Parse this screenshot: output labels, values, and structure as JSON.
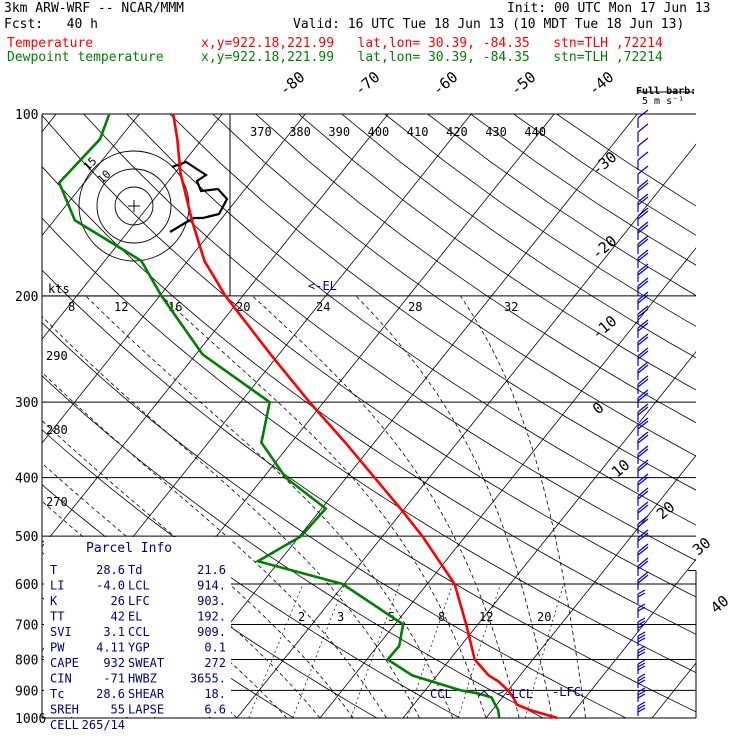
{
  "header": {
    "model": "3km ARW-WRF -- NCAR/MMM",
    "init": "Init: 00 UTC Mon 17 Jun 13",
    "fcst": "Fcst:   40 h",
    "valid": "Valid: 16 UTC Tue 18 Jun 13 (10 MDT Tue 18 Jun 13)",
    "temp_label": "Temperature",
    "temp_info": "x,y=922.18,221.99   lat,lon= 30.39, -84.35   stn=TLH ,72214",
    "dew_label": "Dewpoint temperature",
    "dew_info": "x,y=922.18,221.99   lat,lon= 30.39, -84.35   stn=TLH ,72214"
  },
  "colors": {
    "temperature": "#ff0000",
    "dewpoint": "#008000",
    "text_info": "#000080",
    "barb": "#0000cc"
  },
  "chart_data": {
    "type": "line",
    "subtype": "skew-T log-p sounding",
    "y_scale": "log",
    "pressure_levels": [
      100,
      200,
      300,
      400,
      500,
      600,
      700,
      800,
      900,
      1000
    ],
    "pressure_range": [
      1000,
      100
    ],
    "isotherm_labels": [
      -80,
      -70,
      -60,
      -50,
      -40,
      -30,
      -20,
      -10,
      0,
      10,
      20,
      30,
      40
    ],
    "theta_labels": [
      370,
      380,
      390,
      400,
      410,
      420,
      430,
      440
    ],
    "thetae_labels": [
      290,
      280,
      270
    ],
    "mixing_ratio_labels": [
      2,
      3,
      5,
      8,
      12,
      20
    ],
    "hodograph": {
      "unit_label": "kts",
      "ring_labels": [
        "15",
        "10"
      ],
      "speed_scale_labels": [
        "8",
        "12",
        "16",
        "20",
        "24",
        "28",
        "32"
      ]
    },
    "barb_legend": "Full barb: 5 m s⁻¹",
    "markers": [
      "<-EL",
      "<-LCL",
      "-LFC",
      "CCL"
    ],
    "series": [
      {
        "name": "Temperature",
        "unit": "°C",
        "points": [
          [
            1000,
            28.6
          ],
          [
            970,
            24.5
          ],
          [
            950,
            22.4
          ],
          [
            925,
            21.3
          ],
          [
            900,
            20.0
          ],
          [
            870,
            18.0
          ],
          [
            850,
            16.2
          ],
          [
            800,
            13.0
          ],
          [
            700,
            8.6
          ],
          [
            600,
            3.3
          ],
          [
            500,
            -5.2
          ],
          [
            450,
            -10.5
          ],
          [
            400,
            -16.6
          ],
          [
            350,
            -23.5
          ],
          [
            300,
            -31.7
          ],
          [
            250,
            -41.0
          ],
          [
            200,
            -52.1
          ],
          [
            175,
            -58.0
          ],
          [
            150,
            -63.4
          ],
          [
            125,
            -69.4
          ],
          [
            110,
            -73.0
          ],
          [
            100,
            -75.9
          ]
        ]
      },
      {
        "name": "Dewpoint temperature",
        "unit": "°C",
        "points": [
          [
            1000,
            21.6
          ],
          [
            970,
            20.7
          ],
          [
            950,
            19.8
          ],
          [
            925,
            18.7
          ],
          [
            910,
            16.6
          ],
          [
            900,
            14.3
          ],
          [
            850,
            7.0
          ],
          [
            800,
            2.5
          ],
          [
            760,
            2.6
          ],
          [
            700,
            1.0
          ],
          [
            600,
            -10.2
          ],
          [
            550,
            -22.6
          ],
          [
            500,
            -19.8
          ],
          [
            450,
            -19.5
          ],
          [
            400,
            -27.3
          ],
          [
            350,
            -33.6
          ],
          [
            300,
            -36.5
          ],
          [
            250,
            -49.2
          ],
          [
            200,
            -59.8
          ],
          [
            175,
            -65.6
          ],
          [
            150,
            -77.5
          ],
          [
            130,
            -83.0
          ],
          [
            110,
            -82.3
          ],
          [
            100,
            -83.6
          ]
        ]
      }
    ],
    "parcel_info": {
      "title": "Parcel Info",
      "rows": [
        [
          "T",
          "28.6",
          "Td",
          "21.6"
        ],
        [
          "LI",
          "-4.0",
          "LCL",
          "914."
        ],
        [
          "K",
          "26",
          "LFC",
          "903."
        ],
        [
          "TT",
          "42",
          "EL",
          "192."
        ],
        [
          "SVI",
          "3.1",
          "CCL",
          "909."
        ],
        [
          "PW",
          "4.11",
          "YGP",
          "0.1"
        ],
        [
          "CAPE",
          "932",
          "SWEAT",
          "272"
        ],
        [
          "CIN",
          "-71",
          "HWBZ",
          "3655."
        ],
        [
          "Tc",
          "28.6",
          "SHEAR",
          "18."
        ],
        [
          "SREH",
          "55",
          "LAPSE",
          "6.6"
        ],
        [
          "CELL",
          "265/14",
          "",
          ""
        ]
      ]
    }
  }
}
